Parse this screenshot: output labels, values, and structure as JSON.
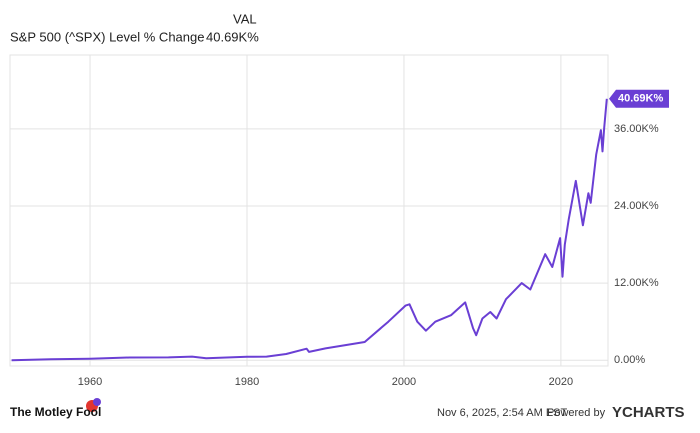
{
  "chart_data": {
    "type": "line",
    "value_header": "VAL",
    "x": [
      1950,
      1955,
      1960,
      1965,
      1970,
      1973,
      1974.8,
      1980,
      1982.5,
      1985,
      1987.6,
      1987.9,
      1990,
      1995,
      1998,
      2000.2,
      2000.7,
      2001.7,
      2002.8,
      2004,
      2006,
      2007.8,
      2008.8,
      2009.2,
      2010,
      2011,
      2011.8,
      2013,
      2015,
      2016.1,
      2018,
      2018.9,
      2019.9,
      2020.2,
      2020.5,
      2021,
      2021.9,
      2022.8,
      2023.5,
      2023.8,
      2024.5,
      2025.1,
      2025.3,
      2025.5,
      2025.85
    ],
    "series": [
      {
        "name": "S&P 500 (^SPX) Level % Change",
        "color": "#6a3fd4",
        "values": [
          0,
          150,
          240,
          420,
          440,
          560,
          300,
          535,
          560,
          960,
          1800,
          1300,
          1840,
          2840,
          6000,
          8500,
          8700,
          6000,
          4600,
          6000,
          7000,
          9000,
          5000,
          3900,
          6500,
          7500,
          6500,
          9500,
          12000,
          11000,
          16500,
          14500,
          19000,
          13000,
          18000,
          22000,
          27900,
          21000,
          26000,
          24500,
          32000,
          35800,
          32500,
          36000,
          40690
        ],
        "last_value": 40690,
        "last_value_label": "40.69K%"
      }
    ],
    "xlim": [
      1949.8,
      2026
    ],
    "xticks": [
      1960,
      1980,
      2000,
      2020
    ],
    "ylim": [
      -900,
      47500
    ],
    "yticks": [
      {
        "value": 0,
        "label": "0.00%"
      },
      {
        "value": 12000,
        "label": "12.00K%"
      },
      {
        "value": 24000,
        "label": "24.00K%"
      },
      {
        "value": 36000,
        "label": "36.00K%"
      }
    ],
    "grid": true
  },
  "footer": {
    "logo": "The Motley Fool",
    "timestamp": "Nov 6, 2025, 2:54 AM EST",
    "powered_by": "Powered by",
    "brand": "YCHARTS"
  }
}
